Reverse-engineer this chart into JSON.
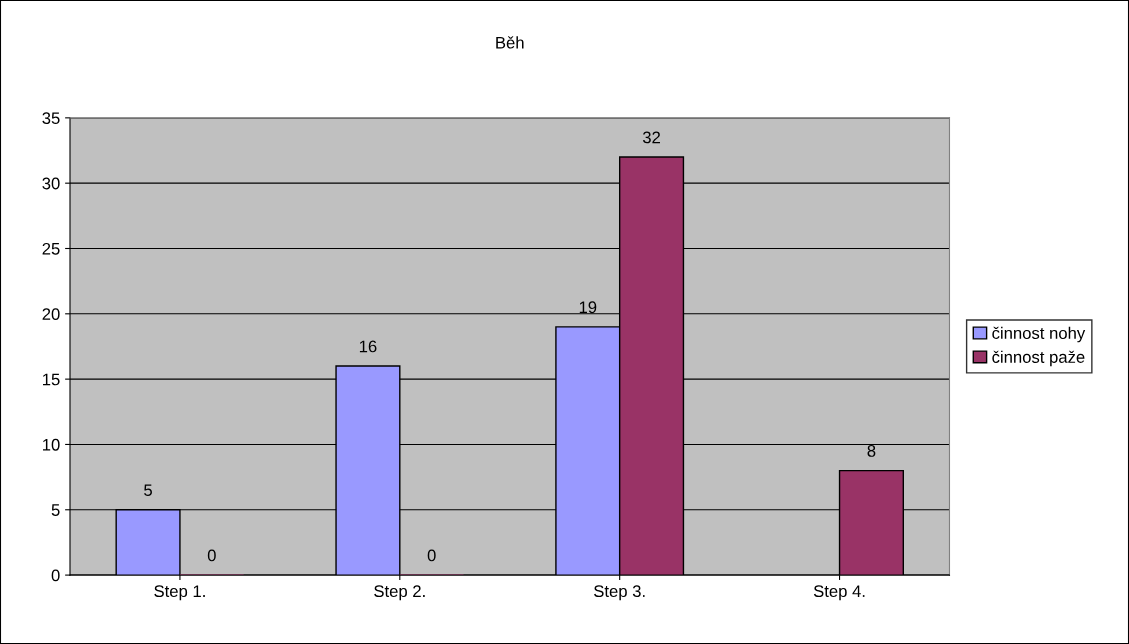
{
  "chart_data": {
    "type": "bar",
    "title": "Běh",
    "categories": [
      "Step 1.",
      "Step 2.",
      "Step 3.",
      "Step 4."
    ],
    "series": [
      {
        "name": "činnost nohy",
        "color": "#9999ff",
        "values": [
          5,
          16,
          19,
          null
        ]
      },
      {
        "name": "činnost paže",
        "color": "#993366",
        "values": [
          0,
          0,
          32,
          8
        ]
      }
    ],
    "ylim": [
      0,
      35
    ],
    "yticks": [
      0,
      5,
      10,
      15,
      20,
      25,
      30,
      35
    ],
    "grid": "y",
    "legend": "right",
    "data_labels": true
  }
}
